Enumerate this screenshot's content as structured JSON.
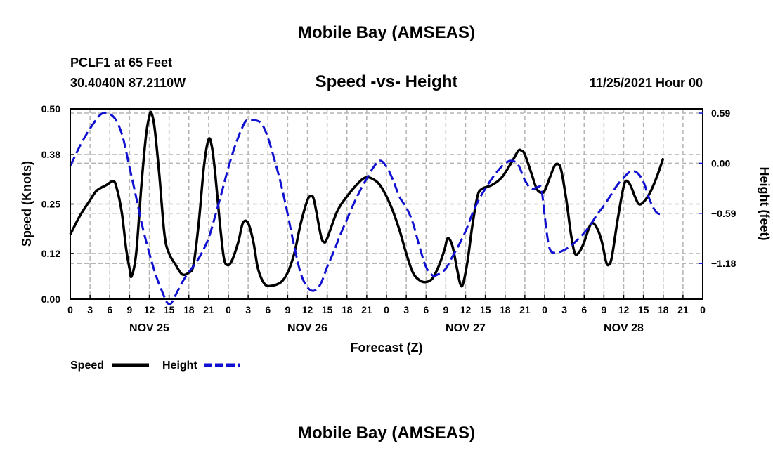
{
  "header": {
    "title": "Mobile Bay (AMSEAS)",
    "station_line": "PCLF1 at 65 Feet",
    "coords_line": "30.4040N  87.2110W",
    "chart_title": "Speed -vs- Height",
    "date_line": "11/25/2021 Hour 00"
  },
  "footer": {
    "title": "Mobile Bay (AMSEAS)"
  },
  "legend": {
    "speed_label": "Speed",
    "height_label": "Height"
  },
  "colors": {
    "speed": "#000000",
    "height": "#1010d0",
    "grid": "#b4b4b4"
  },
  "chart_data": {
    "type": "line",
    "xlabel": "Forecast (Z)",
    "ylabel_left": "Speed (Knots)",
    "ylabel_right": "Height (feet)",
    "x_unit": "hours from 11/25/2021 00Z",
    "xlim": [
      0,
      96
    ],
    "ylim_left": [
      0,
      0.5
    ],
    "ylim_right": [
      -1.6,
      0.64
    ],
    "grid": true,
    "legend_position": "bottom-left",
    "x_ticks": [
      0,
      3,
      6,
      9,
      12,
      15,
      18,
      21,
      24,
      27,
      30,
      33,
      36,
      39,
      42,
      45,
      48,
      51,
      54,
      57,
      60,
      63,
      66,
      69,
      72,
      75,
      78,
      81,
      84,
      87,
      90,
      93,
      96
    ],
    "x_tick_labels": [
      "0",
      "3",
      "6",
      "9",
      "12",
      "15",
      "18",
      "21",
      "0",
      "3",
      "6",
      "9",
      "12",
      "15",
      "18",
      "21",
      "0",
      "3",
      "6",
      "9",
      "12",
      "15",
      "18",
      "21",
      "0",
      "3",
      "6",
      "9",
      "12",
      "15",
      "18",
      "21",
      "0"
    ],
    "day_labels": [
      {
        "label": "NOV 25",
        "x": 12
      },
      {
        "label": "NOV 26",
        "x": 36
      },
      {
        "label": "NOV 27",
        "x": 60
      },
      {
        "label": "NOV 28",
        "x": 84
      }
    ],
    "y_left_ticks": [
      0.0,
      0.12,
      0.25,
      0.38,
      0.5
    ],
    "y_left_tick_labels": [
      "0.00",
      "0.12",
      "0.25",
      "0.38",
      "0.50"
    ],
    "y_right_ticks": [
      -1.18,
      -0.59,
      0.0,
      0.59
    ],
    "y_right_tick_labels": [
      "−1.18",
      "−0.59",
      "0.00",
      "0.59"
    ],
    "series": [
      {
        "name": "Speed",
        "axis": "left",
        "points": [
          [
            0,
            0.17
          ],
          [
            1.5,
            0.22
          ],
          [
            3,
            0.26
          ],
          [
            4,
            0.285
          ],
          [
            5.5,
            0.3
          ],
          [
            6.5,
            0.31
          ],
          [
            7,
            0.295
          ],
          [
            7.8,
            0.23
          ],
          [
            8.5,
            0.13
          ],
          [
            9,
            0.08
          ],
          [
            9.3,
            0.06
          ],
          [
            10,
            0.12
          ],
          [
            10.8,
            0.3
          ],
          [
            11.5,
            0.43
          ],
          [
            12,
            0.48
          ],
          [
            12.3,
            0.49
          ],
          [
            12.8,
            0.45
          ],
          [
            13.5,
            0.33
          ],
          [
            14.3,
            0.17
          ],
          [
            15,
            0.12
          ],
          [
            16,
            0.09
          ],
          [
            17,
            0.065
          ],
          [
            18,
            0.07
          ],
          [
            18.7,
            0.09
          ],
          [
            19.5,
            0.2
          ],
          [
            20.3,
            0.35
          ],
          [
            21,
            0.42
          ],
          [
            21.5,
            0.4
          ],
          [
            22,
            0.33
          ],
          [
            22.7,
            0.2
          ],
          [
            23.3,
            0.11
          ],
          [
            23.8,
            0.09
          ],
          [
            24.5,
            0.1
          ],
          [
            25.5,
            0.15
          ],
          [
            26.2,
            0.2
          ],
          [
            27,
            0.2
          ],
          [
            27.8,
            0.15
          ],
          [
            28.5,
            0.08
          ],
          [
            29.5,
            0.04
          ],
          [
            30.5,
            0.035
          ],
          [
            32,
            0.045
          ],
          [
            33,
            0.07
          ],
          [
            34,
            0.12
          ],
          [
            35,
            0.2
          ],
          [
            36,
            0.26
          ],
          [
            36.5,
            0.27
          ],
          [
            37,
            0.26
          ],
          [
            38,
            0.17
          ],
          [
            38.5,
            0.15
          ],
          [
            39,
            0.16
          ],
          [
            40.5,
            0.23
          ],
          [
            42,
            0.27
          ],
          [
            44,
            0.31
          ],
          [
            45,
            0.32
          ],
          [
            46,
            0.315
          ],
          [
            47,
            0.3
          ],
          [
            48,
            0.27
          ],
          [
            49,
            0.23
          ],
          [
            50,
            0.18
          ],
          [
            51,
            0.12
          ],
          [
            52,
            0.07
          ],
          [
            53,
            0.05
          ],
          [
            54,
            0.045
          ],
          [
            55,
            0.055
          ],
          [
            56,
            0.09
          ],
          [
            56.8,
            0.13
          ],
          [
            57.3,
            0.16
          ],
          [
            58,
            0.14
          ],
          [
            58.7,
            0.08
          ],
          [
            59.2,
            0.04
          ],
          [
            59.6,
            0.04
          ],
          [
            60.3,
            0.1
          ],
          [
            61,
            0.19
          ],
          [
            61.8,
            0.27
          ],
          [
            62.5,
            0.29
          ],
          [
            64,
            0.3
          ],
          [
            65.5,
            0.32
          ],
          [
            67,
            0.36
          ],
          [
            68,
            0.39
          ],
          [
            68.5,
            0.39
          ],
          [
            69,
            0.38
          ],
          [
            70,
            0.33
          ],
          [
            70.8,
            0.29
          ],
          [
            71.5,
            0.28
          ],
          [
            72,
            0.285
          ],
          [
            72.8,
            0.32
          ],
          [
            73.5,
            0.35
          ],
          [
            74,
            0.355
          ],
          [
            74.5,
            0.34
          ],
          [
            75.3,
            0.26
          ],
          [
            76,
            0.17
          ],
          [
            76.6,
            0.12
          ],
          [
            77.3,
            0.125
          ],
          [
            78,
            0.15
          ],
          [
            78.8,
            0.19
          ],
          [
            79.3,
            0.2
          ],
          [
            80,
            0.185
          ],
          [
            80.7,
            0.15
          ],
          [
            81.3,
            0.1
          ],
          [
            81.7,
            0.09
          ],
          [
            82.2,
            0.11
          ],
          [
            83,
            0.2
          ],
          [
            83.8,
            0.28
          ],
          [
            84.3,
            0.31
          ],
          [
            85,
            0.3
          ],
          [
            85.7,
            0.27
          ],
          [
            86.3,
            0.25
          ],
          [
            87,
            0.255
          ],
          [
            88,
            0.28
          ],
          [
            89,
            0.32
          ],
          [
            90,
            0.37
          ]
        ]
      },
      {
        "name": "Height",
        "axis": "right",
        "dashed": true,
        "points": [
          [
            0,
            -0.03
          ],
          [
            2,
            0.28
          ],
          [
            4,
            0.52
          ],
          [
            5,
            0.59
          ],
          [
            6,
            0.58
          ],
          [
            7,
            0.5
          ],
          [
            8,
            0.3
          ],
          [
            9,
            -0.05
          ],
          [
            10,
            -0.4
          ],
          [
            11,
            -0.76
          ],
          [
            12,
            -1.06
          ],
          [
            13,
            -1.32
          ],
          [
            14,
            -1.52
          ],
          [
            14.7,
            -1.64
          ],
          [
            15.3,
            -1.65
          ],
          [
            16,
            -1.55
          ],
          [
            17,
            -1.4
          ],
          [
            18,
            -1.28
          ],
          [
            19,
            -1.18
          ],
          [
            20,
            -1.05
          ],
          [
            21,
            -0.88
          ],
          [
            22,
            -0.62
          ],
          [
            23,
            -0.34
          ],
          [
            24,
            -0.05
          ],
          [
            25,
            0.2
          ],
          [
            26,
            0.4
          ],
          [
            26.7,
            0.5
          ],
          [
            27.7,
            0.51
          ],
          [
            29,
            0.47
          ],
          [
            30,
            0.3
          ],
          [
            31,
            0.04
          ],
          [
            32,
            -0.25
          ],
          [
            33,
            -0.6
          ],
          [
            34,
            -0.98
          ],
          [
            35,
            -1.3
          ],
          [
            36,
            -1.46
          ],
          [
            37,
            -1.5
          ],
          [
            38,
            -1.42
          ],
          [
            39,
            -1.22
          ],
          [
            40,
            -1.04
          ],
          [
            41,
            -0.84
          ],
          [
            42,
            -0.66
          ],
          [
            43,
            -0.48
          ],
          [
            44,
            -0.32
          ],
          [
            45,
            -0.18
          ],
          [
            46,
            -0.05
          ],
          [
            47,
            0.03
          ],
          [
            48,
            -0.04
          ],
          [
            49,
            -0.2
          ],
          [
            50,
            -0.4
          ],
          [
            51,
            -0.52
          ],
          [
            52,
            -0.7
          ],
          [
            53,
            -0.98
          ],
          [
            54,
            -1.22
          ],
          [
            55,
            -1.32
          ],
          [
            56,
            -1.3
          ],
          [
            57,
            -1.24
          ],
          [
            58,
            -1.1
          ],
          [
            59,
            -0.96
          ],
          [
            60,
            -0.8
          ],
          [
            61,
            -0.6
          ],
          [
            62,
            -0.43
          ],
          [
            63,
            -0.3
          ],
          [
            64,
            -0.18
          ],
          [
            65,
            -0.08
          ],
          [
            66,
            0.0
          ],
          [
            67,
            0.03
          ],
          [
            68,
            -0.02
          ],
          [
            69,
            -0.2
          ],
          [
            70,
            -0.3
          ],
          [
            71,
            -0.28
          ],
          [
            71.5,
            -0.3
          ],
          [
            72,
            -0.61
          ],
          [
            72.5,
            -0.91
          ],
          [
            73,
            -1.04
          ],
          [
            74,
            -1.05
          ],
          [
            75,
            -1.02
          ],
          [
            76,
            -0.97
          ],
          [
            77,
            -0.9
          ],
          [
            78,
            -0.82
          ],
          [
            79,
            -0.72
          ],
          [
            80,
            -0.6
          ],
          [
            81,
            -0.5
          ],
          [
            82,
            -0.38
          ],
          [
            83,
            -0.26
          ],
          [
            84,
            -0.17
          ],
          [
            85,
            -0.1
          ],
          [
            86,
            -0.11
          ],
          [
            87,
            -0.22
          ],
          [
            88,
            -0.44
          ],
          [
            89,
            -0.58
          ],
          [
            90,
            -0.6
          ]
        ]
      }
    ]
  }
}
